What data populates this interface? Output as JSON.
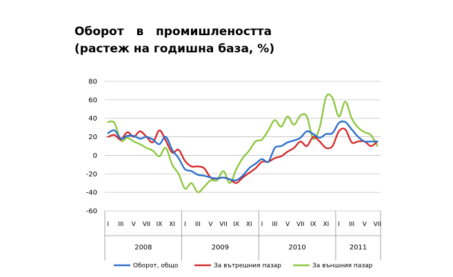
{
  "title_line1": "Оборот   в   промишлеността",
  "title_line2": "(растеж на годишна база, %)",
  "chart_data": {
    "type": "line",
    "ylim": [
      -60,
      80
    ],
    "yticks": [
      -60,
      -40,
      -20,
      0,
      20,
      40,
      60,
      80
    ],
    "grid": true,
    "legend_position": "bottom",
    "month_labels": [
      "I",
      "III",
      "V",
      "VII",
      "IX",
      "XI",
      "I",
      "III",
      "V",
      "VII",
      "IX",
      "XI",
      "I",
      "III",
      "V",
      "VII",
      "IX",
      "XI",
      "I",
      "III",
      "V",
      "VII"
    ],
    "years": [
      {
        "label": "2008",
        "months": 12
      },
      {
        "label": "2009",
        "months": 12
      },
      {
        "label": "2010",
        "months": 12
      },
      {
        "label": "2011",
        "months": 7
      }
    ],
    "series": [
      {
        "name": "Оборот, общо",
        "color": "#2a6fc9",
        "values": [
          24,
          27,
          18,
          21,
          21,
          18,
          20,
          17,
          12,
          20,
          6,
          -3,
          -15,
          -17,
          -21,
          -22,
          -24,
          -25,
          -24,
          -26,
          -27,
          -22,
          -14,
          -9,
          -4,
          -7,
          8,
          10,
          14,
          16,
          19,
          26,
          23,
          19,
          23,
          24,
          35,
          36,
          28,
          20,
          15,
          15,
          15
        ]
      },
      {
        "name": "За вътрешния пазар",
        "color": "#d42a2a",
        "values": [
          20,
          22,
          17,
          25,
          20,
          26,
          20,
          14,
          27,
          16,
          3,
          6,
          -6,
          -12,
          -12,
          -14,
          -24,
          -25,
          -24,
          -26,
          -30,
          -24,
          -19,
          -14,
          -7,
          -7,
          -3,
          -1,
          4,
          8,
          15,
          10,
          20,
          15,
          8,
          10,
          26,
          28,
          14,
          15,
          15,
          10,
          15
        ]
      },
      {
        "name": "За външния пазар",
        "color": "#8dc63f",
        "values": [
          36,
          35,
          16,
          19,
          15,
          12,
          8,
          5,
          -1,
          8,
          -10,
          -20,
          -36,
          -30,
          -40,
          -34,
          -27,
          -27,
          -17,
          -30,
          -15,
          -3,
          5,
          15,
          17,
          27,
          38,
          31,
          42,
          33,
          43,
          42,
          18,
          30,
          63,
          62,
          42,
          58,
          40,
          30,
          25,
          22,
          10
        ]
      }
    ]
  }
}
